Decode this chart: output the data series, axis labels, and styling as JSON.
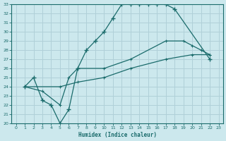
{
  "xlabel": "Humidex (Indice chaleur)",
  "background_color": "#cce8ed",
  "grid_color": "#b0d0d8",
  "line_color": "#1a6b6b",
  "xlim": [
    -0.5,
    23.5
  ],
  "ylim": [
    20,
    33
  ],
  "xticks": [
    0,
    1,
    2,
    3,
    4,
    5,
    6,
    7,
    8,
    9,
    10,
    11,
    12,
    13,
    14,
    15,
    16,
    17,
    18,
    19,
    20,
    21,
    22,
    23
  ],
  "yticks": [
    20,
    21,
    22,
    23,
    24,
    25,
    26,
    27,
    28,
    29,
    30,
    31,
    32,
    33
  ],
  "line1_x": [
    1,
    2,
    3,
    4,
    5,
    6,
    7,
    8,
    9,
    10,
    11,
    12,
    13,
    14,
    15,
    16,
    17,
    18,
    22
  ],
  "line1_y": [
    24,
    25,
    22.5,
    22,
    20,
    21.5,
    26,
    28,
    29,
    30,
    31.5,
    33,
    33,
    33,
    33,
    33,
    33,
    32.5,
    27
  ],
  "line2_x": [
    1,
    3,
    5,
    6,
    7,
    10,
    13,
    17,
    19,
    20,
    21,
    22
  ],
  "line2_y": [
    24,
    23.5,
    22,
    25,
    26,
    26,
    27,
    29,
    29,
    28.5,
    28,
    27.5
  ],
  "line3_x": [
    1,
    5,
    7,
    10,
    13,
    17,
    20,
    22
  ],
  "line3_y": [
    24,
    24,
    24.5,
    25,
    26,
    27,
    27.5,
    27.5
  ]
}
